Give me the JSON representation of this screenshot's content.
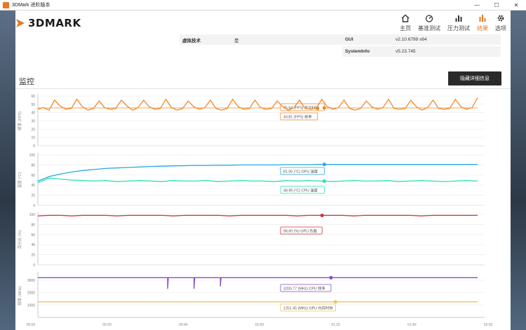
{
  "window": {
    "title": "3DMark 进阶版本",
    "minimize": "—",
    "maximize": "☐",
    "close": "✕"
  },
  "brand": {
    "logo_text": "3DMARK"
  },
  "nav": {
    "items": [
      {
        "label": "主页",
        "icon": "home-icon"
      },
      {
        "label": "基准测试",
        "icon": "gauge-icon"
      },
      {
        "label": "压力测试",
        "icon": "bar-chart-icon"
      },
      {
        "label": "结果",
        "icon": "results-icon",
        "active": true
      },
      {
        "label": "选项",
        "icon": "gear-icon"
      }
    ]
  },
  "info": {
    "virtualization_key": "虚拟技术",
    "virtualization_value": "是",
    "gui_key": "GUI",
    "gui_value": "v2.10.6799 s64",
    "sysinfo_key": "SystemInfo",
    "sysinfo_value": "v5.23.745"
  },
  "monitoring": {
    "title": "监控",
    "hide_button": "隐藏详细信息"
  },
  "colors": {
    "accent": "#e87722",
    "fps": "#f08a2a",
    "gpu_temp": "#29a9e1",
    "cpu_temp": "#2de0b4",
    "gpu_load": "#d6313a",
    "cpu_clock": "#8a4bc7",
    "gpu_mem_clock": "#eac46e"
  },
  "chart_data": [
    {
      "type": "line",
      "ylabel": "帧率 (FPS)",
      "ylim": [
        0,
        60
      ],
      "yticks": [
        0,
        10,
        20,
        30,
        40,
        50,
        60
      ],
      "series": [
        {
          "name": "平均FPS",
          "label": "45.64 (FPS) 平均FPS",
          "values": [
            45.64,
            45.64
          ],
          "color": "#f08a2a"
        },
        {
          "name": "帧率",
          "label": "43.81 (FPS) 帧率",
          "values": [
            44,
            46,
            43,
            55,
            48,
            44,
            45,
            56,
            47,
            43,
            45,
            54,
            46,
            44,
            45,
            55,
            48,
            43,
            46,
            55,
            47,
            44,
            45,
            56,
            46,
            43,
            45,
            54,
            47,
            44,
            46,
            55,
            45,
            43,
            45,
            56,
            47,
            44,
            45,
            55,
            46,
            44,
            45,
            54,
            47,
            43,
            46,
            55,
            45,
            44,
            45,
            56,
            47,
            44,
            46,
            55,
            45,
            43,
            45,
            54,
            47,
            44,
            46,
            56,
            45,
            44,
            45,
            55,
            47,
            43,
            46,
            55,
            45,
            44,
            45,
            56,
            47,
            44,
            46,
            58
          ],
          "color": "#f08a2a"
        }
      ]
    },
    {
      "type": "line",
      "ylabel": "温度 (°C)",
      "ylim": [
        0,
        100
      ],
      "yticks": [
        0,
        20,
        40,
        60,
        80,
        100
      ],
      "series": [
        {
          "name": "GPU 温度",
          "label": "81.00 (°C) GPU 温度",
          "values": [
            48,
            57,
            62,
            66,
            69,
            71,
            73,
            74,
            75,
            76,
            77,
            77.5,
            78,
            78.5,
            79,
            79,
            79.5,
            79.5,
            80,
            80,
            80,
            80,
            80.5,
            80.5,
            80.5,
            81,
            81,
            81,
            81,
            81,
            81,
            81,
            81,
            81,
            81,
            81,
            81,
            81,
            81,
            81
          ],
          "color": "#29a9e1"
        },
        {
          "name": "CPU 温度",
          "label": "48.99 (°C) CPU 温度",
          "values": [
            45,
            54,
            52,
            50,
            49,
            48,
            49,
            47,
            48,
            49,
            48,
            47,
            49,
            48,
            48,
            49,
            47,
            48,
            49,
            48,
            48,
            47,
            49,
            48,
            49,
            48,
            47,
            48,
            49,
            48,
            48,
            49,
            47,
            48,
            49,
            48,
            47,
            48,
            49,
            48
          ],
          "color": "#2de0b4"
        }
      ]
    },
    {
      "type": "line",
      "ylabel": "百分比 (%)",
      "ylim": [
        0,
        100
      ],
      "yticks": [
        0,
        20,
        40,
        60,
        80,
        100
      ],
      "series": [
        {
          "name": "GPU 负载",
          "label": "98.00 (%) GPU 负载",
          "values": [
            97,
            98,
            98,
            97,
            98,
            98,
            98,
            97,
            98,
            98,
            98,
            98,
            97,
            98,
            98,
            98,
            98,
            97,
            98,
            98,
            98,
            98,
            98,
            97,
            98,
            98,
            98,
            98,
            97,
            98,
            98,
            98,
            98,
            98,
            97,
            98,
            98,
            98,
            98,
            98
          ],
          "color": "#d6313a"
        }
      ]
    },
    {
      "type": "line",
      "ylabel": "频率 (MHz)",
      "ylim": [
        0,
        3500
      ],
      "yticks": [
        1000,
        2000,
        3000
      ],
      "xlabel": "",
      "xticks": [
        "00:00",
        "00:20",
        "00:40",
        "01:00",
        "01:20",
        "01:40",
        "02:00"
      ],
      "series": [
        {
          "name": "CPU 频率",
          "label": "3200.77 (MHz) CPU 频率",
          "values": [
            3200,
            3200,
            3200,
            3200,
            3200,
            3200,
            3200,
            3200,
            3200,
            3200,
            3200,
            3200,
            3200,
            3200,
            3200,
            3200,
            3200,
            3200,
            3200,
            3200,
            3200,
            3200,
            3200,
            3200,
            3200,
            3200,
            3200,
            3200,
            3200,
            3200,
            3200,
            3200,
            3200,
            3200,
            3200,
            3200,
            3200,
            3200,
            3200,
            3200
          ],
          "dips": [
            {
              "x": 0.295,
              "value": 2300
            },
            {
              "x": 0.355,
              "value": 2300
            },
            {
              "x": 0.415,
              "value": 2500
            }
          ],
          "color": "#8a4bc7"
        },
        {
          "name": "GPU 内存时钟",
          "label": "1251.45 (MHz) GPU 内存时钟",
          "values": [
            1251.45,
            1251.45
          ],
          "color": "#eac46e"
        }
      ]
    }
  ]
}
